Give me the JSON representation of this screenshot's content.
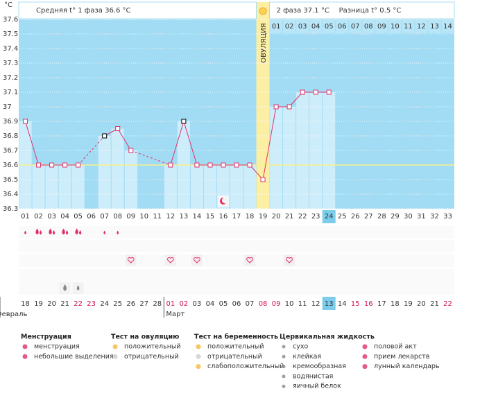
{
  "chart_data": {
    "type": "line",
    "y_unit": "°C",
    "header": {
      "phase1": "Средняя t° 1 фаза 36.6 °C",
      "phase2": "2 фаза 37.1 °C",
      "difference": "Разница t° 0.5 °C"
    },
    "categories": [
      "01",
      "02",
      "03",
      "04",
      "05",
      "06",
      "07",
      "08",
      "09",
      "10",
      "11",
      "12",
      "13",
      "14",
      "15",
      "16",
      "17",
      "18",
      "19",
      "20",
      "21",
      "22",
      "23",
      "24",
      "25",
      "26",
      "27",
      "28",
      "29",
      "30",
      "31",
      "32",
      "33"
    ],
    "values": [
      36.9,
      36.6,
      36.6,
      36.6,
      36.6,
      null,
      36.8,
      36.85,
      36.7,
      null,
      null,
      36.6,
      36.9,
      36.6,
      36.6,
      36.6,
      36.6,
      36.6,
      36.5,
      37.0,
      37.0,
      37.1,
      37.1,
      37.1,
      null,
      null,
      null,
      null,
      null,
      null,
      null,
      null,
      null
    ],
    "color": "#e0306a",
    "special_points": [
      7,
      13
    ],
    "special_color": "#000000",
    "ylim": [
      36.3,
      37.6
    ],
    "yticks": [
      37.6,
      37.5,
      37.4,
      37.3,
      37.2,
      37.1,
      37,
      36.9,
      36.8,
      36.7,
      36.6,
      36.5,
      36.4,
      36.3
    ],
    "grid": true,
    "cover_line": 36.6,
    "ovulation_day": 19,
    "ovulation_label": "ОВУЛЯЦИЯ",
    "today": 24,
    "phase2_labels": [
      "01",
      "02",
      "03",
      "04",
      "05",
      "06",
      "07",
      "08",
      "09",
      "10",
      "11",
      "12",
      "13",
      "14"
    ],
    "lunar_days": [
      16
    ],
    "menstruation_heavy": [
      2,
      3,
      4,
      5
    ],
    "menstruation_light": [
      1,
      7,
      8
    ],
    "sex_days": [
      9,
      12,
      14,
      18,
      21
    ],
    "fluid_eggwhite": [
      4
    ],
    "fluid_watery": [
      5
    ],
    "dates": [
      "18",
      "19",
      "20",
      "21",
      "22",
      "23",
      "24",
      "25",
      "26",
      "27",
      "28",
      "01",
      "02",
      "03",
      "04",
      "05",
      "06",
      "07",
      "08",
      "09",
      "10",
      "11",
      "12",
      "13",
      "14",
      "15",
      "16",
      "17",
      "18",
      "19",
      "20",
      "21",
      "22"
    ],
    "weekend": [
      false,
      false,
      false,
      false,
      true,
      true,
      false,
      false,
      false,
      false,
      false,
      true,
      true,
      false,
      false,
      false,
      false,
      false,
      true,
      true,
      false,
      false,
      false,
      false,
      false,
      true,
      true,
      false,
      false,
      false,
      false,
      false,
      true
    ],
    "months": [
      {
        "label": "Февраль",
        "start": 1
      },
      {
        "label": "Март",
        "start": 12
      }
    ]
  },
  "legend": [
    {
      "title": "Менструация",
      "items": [
        "менструация",
        "небольшие выделения"
      ]
    },
    {
      "title": "Тест на овуляцию",
      "items": [
        "положительный",
        "отрицательный"
      ]
    },
    {
      "title": "Тест на беременность",
      "items": [
        "положительный",
        "отрицательный",
        "слабоположительный"
      ]
    },
    {
      "title": "Цервикальная жидкость",
      "items": [
        "сухо",
        "клейкая",
        "кремообразная",
        "водянистая",
        "яичный белок"
      ]
    },
    {
      "title": "",
      "items": [
        "половой акт",
        "прием лекарств",
        "лунный календарь"
      ]
    }
  ]
}
